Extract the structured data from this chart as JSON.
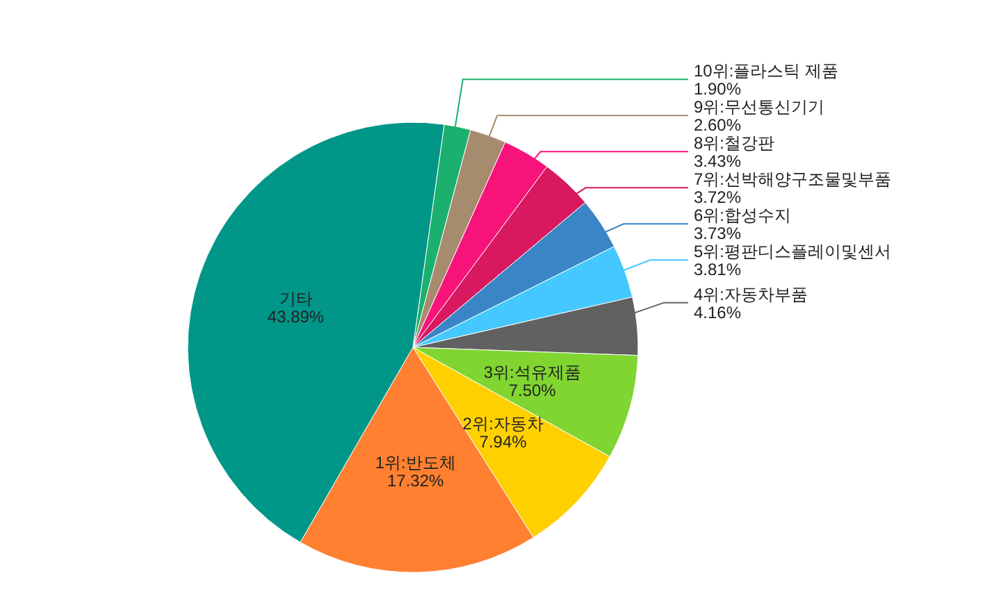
{
  "chart_data": {
    "type": "pie",
    "categories": [
      "10위:플라스틱 제품",
      "9위:무선통신기기",
      "8위:철강판",
      "7위:선박해양구조물및부품",
      "6위:합성수지",
      "5위:평판디스플레이및센서",
      "4위:자동차부품",
      "3위:석유제품",
      "2위:자동차",
      "1위:반도체",
      "기타"
    ],
    "values": [
      1.9,
      2.6,
      3.43,
      3.72,
      3.73,
      3.81,
      4.16,
      7.5,
      7.94,
      17.32,
      43.89
    ],
    "colors": [
      "#1bb06e",
      "#a68b6e",
      "#f7147a",
      "#d8195f",
      "#3a85c5",
      "#45c8ff",
      "#616161",
      "#80d531",
      "#ffd000",
      "#ff8030",
      "#009688"
    ],
    "value_labels": [
      "1.90%",
      "2.60%",
      "3.43%",
      "3.72%",
      "3.73%",
      "3.81%",
      "4.16%",
      "7.50%",
      "7.94%",
      "17.32%",
      "43.89%"
    ]
  }
}
